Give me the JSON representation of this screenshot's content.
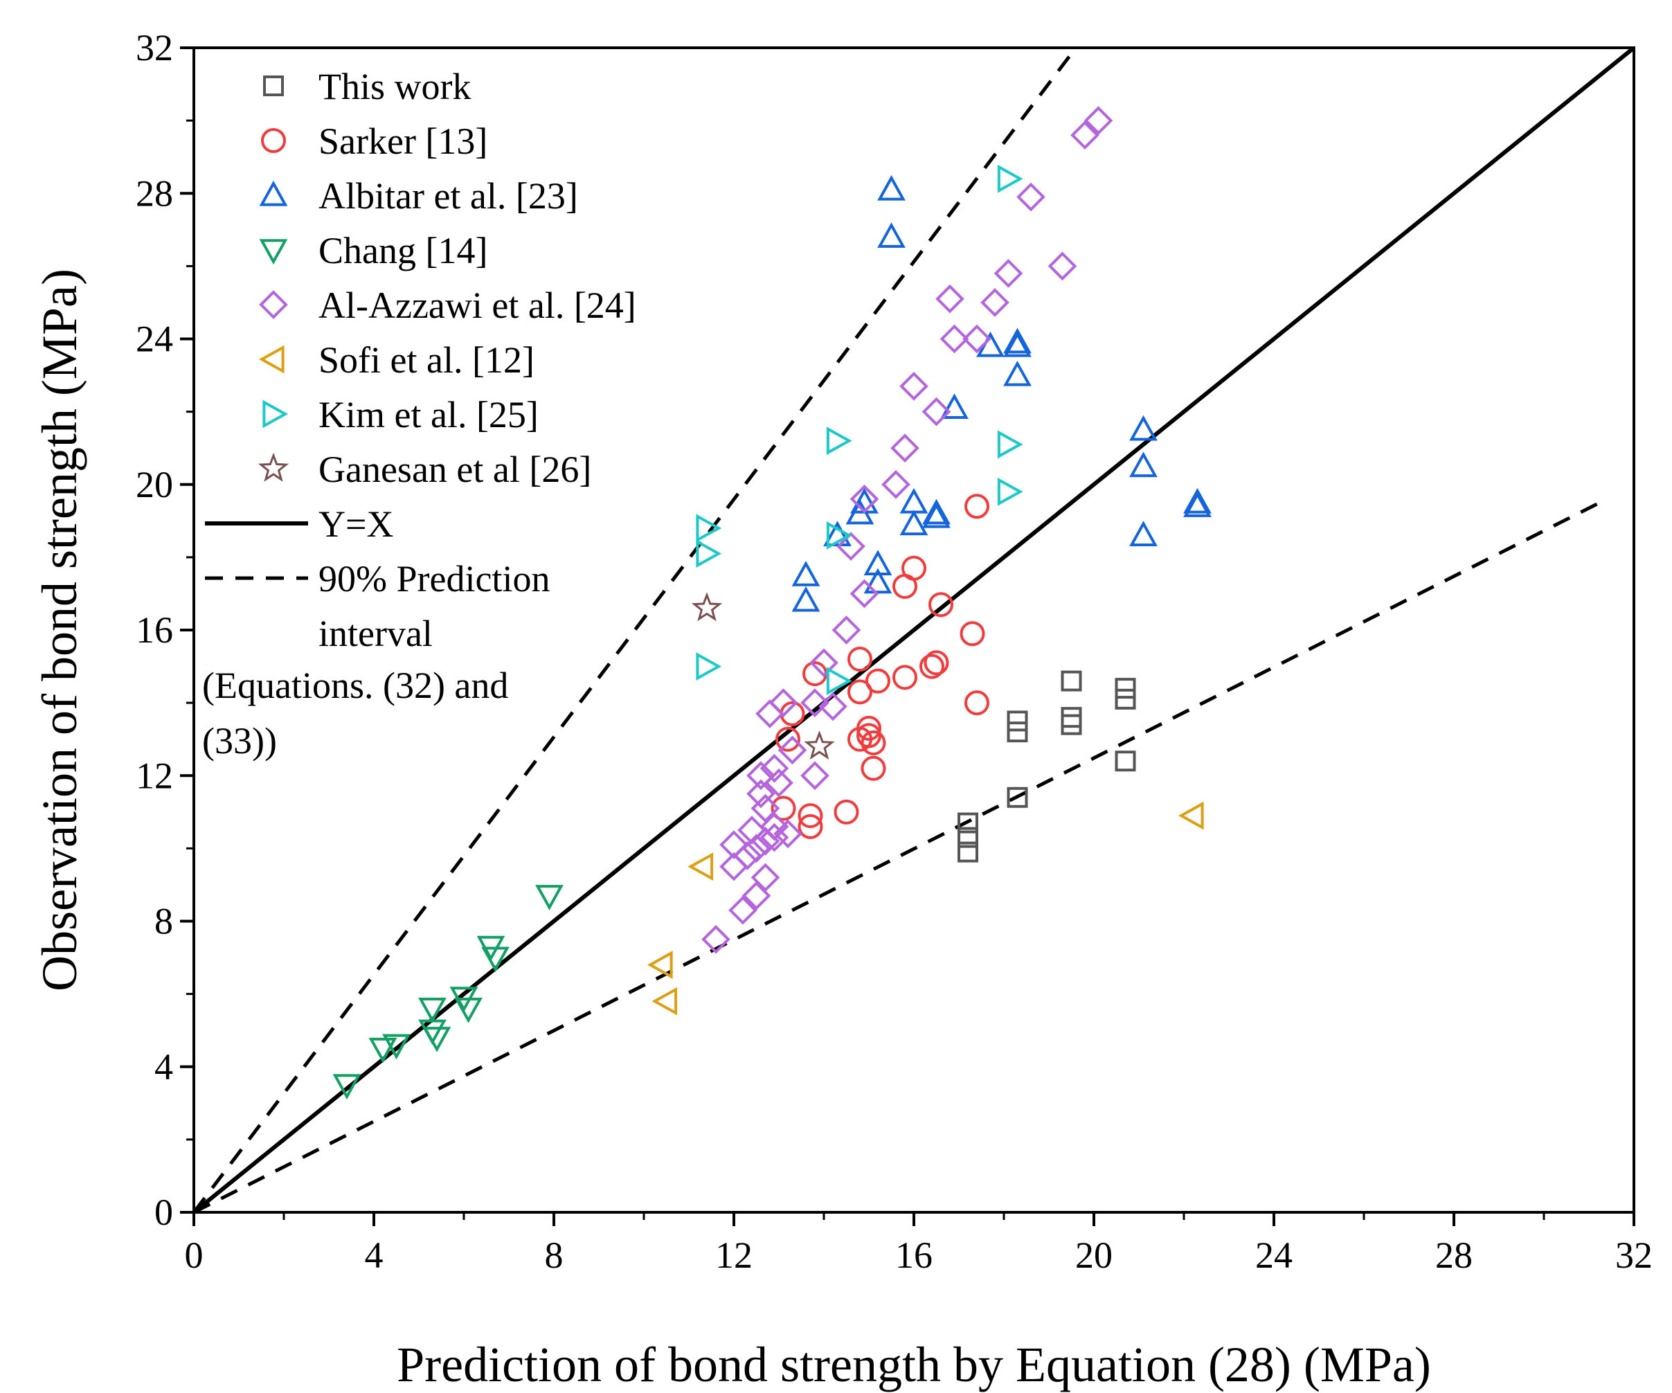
{
  "chart_data": {
    "type": "scatter",
    "xlabel": "Prediction of bond strength by Equation (28) (MPa)",
    "ylabel": "Observation of bond strength (MPa)",
    "xlim": [
      0,
      32
    ],
    "ylim": [
      0,
      32
    ],
    "xticks": [
      "0",
      "4",
      "8",
      "12",
      "16",
      "20",
      "24",
      "28",
      "32"
    ],
    "yticks": [
      "0",
      "4",
      "8",
      "12",
      "16",
      "20",
      "24",
      "28",
      "32"
    ],
    "grid": false,
    "legend_position": "top-left",
    "annotation": [
      "(Equations. (32) and",
      "(33))"
    ],
    "series": [
      {
        "name": "This work",
        "marker": "square",
        "color": "#555555",
        "points": [
          [
            17.2,
            10.7
          ],
          [
            17.2,
            10.3
          ],
          [
            17.2,
            9.9
          ],
          [
            18.3,
            13.5
          ],
          [
            18.3,
            13.2
          ],
          [
            18.3,
            11.4
          ],
          [
            19.5,
            14.6
          ],
          [
            19.5,
            13.6
          ],
          [
            19.5,
            13.4
          ],
          [
            20.7,
            14.4
          ],
          [
            20.7,
            14.1
          ],
          [
            20.7,
            12.4
          ]
        ]
      },
      {
        "name": "Sarker [13]",
        "marker": "circle",
        "color": "#f03c3c",
        "points": [
          [
            13.2,
            13.0
          ],
          [
            13.1,
            11.1
          ],
          [
            13.7,
            10.6
          ],
          [
            13.7,
            10.9
          ],
          [
            13.8,
            14.8
          ],
          [
            14.5,
            11.0
          ],
          [
            14.8,
            15.2
          ],
          [
            14.8,
            14.3
          ],
          [
            14.8,
            13.0
          ],
          [
            15.0,
            13.3
          ],
          [
            15.0,
            13.1
          ],
          [
            15.1,
            12.9
          ],
          [
            15.1,
            12.2
          ],
          [
            15.2,
            14.6
          ],
          [
            15.8,
            14.7
          ],
          [
            15.8,
            17.2
          ],
          [
            16.0,
            17.7
          ],
          [
            16.4,
            15.0
          ],
          [
            16.5,
            15.1
          ],
          [
            16.6,
            16.7
          ],
          [
            17.3,
            15.9
          ],
          [
            17.4,
            14.0
          ],
          [
            17.4,
            19.4
          ],
          [
            13.3,
            13.7
          ]
        ]
      },
      {
        "name": "Albitar et al. [23]",
        "marker": "triangle-up",
        "color": "#1464dc",
        "points": [
          [
            15.5,
            28.1
          ],
          [
            15.5,
            26.8
          ],
          [
            13.6,
            17.5
          ],
          [
            13.6,
            16.8
          ],
          [
            14.3,
            18.6
          ],
          [
            14.8,
            19.2
          ],
          [
            14.9,
            19.5
          ],
          [
            15.2,
            17.8
          ],
          [
            15.2,
            17.3
          ],
          [
            16.0,
            19.5
          ],
          [
            16.0,
            18.9
          ],
          [
            16.5,
            19.1
          ],
          [
            16.5,
            19.2
          ],
          [
            16.9,
            22.1
          ],
          [
            17.7,
            23.8
          ],
          [
            18.3,
            23.8
          ],
          [
            18.3,
            23.9
          ],
          [
            18.3,
            23.0
          ],
          [
            21.1,
            21.5
          ],
          [
            21.1,
            20.5
          ],
          [
            21.1,
            18.6
          ],
          [
            22.3,
            19.4
          ],
          [
            22.3,
            19.5
          ]
        ]
      },
      {
        "name": "Chang [14]",
        "marker": "triangle-down",
        "color": "#14a064",
        "points": [
          [
            3.4,
            3.5
          ],
          [
            4.2,
            4.5
          ],
          [
            4.5,
            4.6
          ],
          [
            5.3,
            5.6
          ],
          [
            5.4,
            4.8
          ],
          [
            5.3,
            5.0
          ],
          [
            6.0,
            5.9
          ],
          [
            6.1,
            5.6
          ],
          [
            6.6,
            7.3
          ],
          [
            6.7,
            7.0
          ],
          [
            7.9,
            8.7
          ]
        ]
      },
      {
        "name": "Al-Azzawi et al. [24]",
        "marker": "diamond",
        "color": "#b464dc",
        "points": [
          [
            11.6,
            7.5
          ],
          [
            12.2,
            8.3
          ],
          [
            12.5,
            8.7
          ],
          [
            12.7,
            9.2
          ],
          [
            12.0,
            9.5
          ],
          [
            12.3,
            9.8
          ],
          [
            12.5,
            10.0
          ],
          [
            12.7,
            10.2
          ],
          [
            12.9,
            10.3
          ],
          [
            13.2,
            10.4
          ],
          [
            12.0,
            10.1
          ],
          [
            12.4,
            10.5
          ],
          [
            12.9,
            10.6
          ],
          [
            12.7,
            11.1
          ],
          [
            12.6,
            11.5
          ],
          [
            12.6,
            12.0
          ],
          [
            12.9,
            12.2
          ],
          [
            13.0,
            11.8
          ],
          [
            12.8,
            13.7
          ],
          [
            13.1,
            14.0
          ],
          [
            13.3,
            12.7
          ],
          [
            13.8,
            12.0
          ],
          [
            13.8,
            14.0
          ],
          [
            14.0,
            15.1
          ],
          [
            14.2,
            13.9
          ],
          [
            14.5,
            16.0
          ],
          [
            14.6,
            18.3
          ],
          [
            14.9,
            17.0
          ],
          [
            14.9,
            19.6
          ],
          [
            15.6,
            20.0
          ],
          [
            15.8,
            21.0
          ],
          [
            16.0,
            22.7
          ],
          [
            16.5,
            22.0
          ],
          [
            16.8,
            25.1
          ],
          [
            16.9,
            24.0
          ],
          [
            17.4,
            24.0
          ],
          [
            17.8,
            25.0
          ],
          [
            18.1,
            25.8
          ],
          [
            18.6,
            27.9
          ],
          [
            19.3,
            26.0
          ],
          [
            19.8,
            29.6
          ],
          [
            20.1,
            30.0
          ]
        ]
      },
      {
        "name": "Sofi et al. [12]",
        "marker": "triangle-left",
        "color": "#dca014",
        "points": [
          [
            10.4,
            6.8
          ],
          [
            10.5,
            5.8
          ],
          [
            11.3,
            9.5
          ],
          [
            22.2,
            10.9
          ]
        ]
      },
      {
        "name": "Kim et al. [25]",
        "marker": "triangle-right",
        "color": "#1ec8c8",
        "points": [
          [
            11.4,
            18.8
          ],
          [
            11.4,
            18.1
          ],
          [
            11.4,
            15.0
          ],
          [
            14.3,
            21.2
          ],
          [
            14.3,
            18.6
          ],
          [
            14.3,
            14.6
          ],
          [
            18.1,
            28.4
          ],
          [
            18.1,
            21.1
          ],
          [
            18.1,
            19.8
          ]
        ]
      },
      {
        "name": "Ganesan et al [26]",
        "marker": "star",
        "color": "#785050",
        "points": [
          [
            11.4,
            16.6
          ],
          [
            13.9,
            12.8
          ]
        ]
      }
    ],
    "lines": [
      {
        "name": "Y=X",
        "style": "solid",
        "color": "#000000",
        "points": [
          [
            0,
            0
          ],
          [
            32,
            32
          ]
        ]
      },
      {
        "name": "90% Prediction interval",
        "style": "dashed",
        "color": "#000000",
        "points": [
          [
            0,
            0
          ],
          [
            19.6,
            32
          ]
        ]
      },
      {
        "name": "90% Prediction interval",
        "style": "dashed",
        "color": "#000000",
        "points": [
          [
            0,
            0
          ],
          [
            31.4,
            19.6
          ]
        ]
      }
    ],
    "legend": [
      {
        "label": "This work",
        "marker": "square",
        "color": "#555555"
      },
      {
        "label": "Sarker [13]",
        "marker": "circle",
        "color": "#f03c3c"
      },
      {
        "label": "Albitar et al. [23]",
        "marker": "triangle-up",
        "color": "#1464dc"
      },
      {
        "label": "Chang [14]",
        "marker": "triangle-down",
        "color": "#14a064"
      },
      {
        "label": "Al-Azzawi et al. [24]",
        "marker": "diamond",
        "color": "#b464dc"
      },
      {
        "label": "Sofi et al. [12]",
        "marker": "triangle-left",
        "color": "#dca014"
      },
      {
        "label": "Kim et al. [25]",
        "marker": "triangle-right",
        "color": "#1ec8c8"
      },
      {
        "label": "Ganesan et al [26]",
        "marker": "star",
        "color": "#785050"
      },
      {
        "label": "Y=X",
        "marker": "line-solid",
        "color": "#000000"
      },
      {
        "label": "90% Prediction",
        "label2": "interval",
        "marker": "line-dashed",
        "color": "#000000"
      }
    ]
  }
}
